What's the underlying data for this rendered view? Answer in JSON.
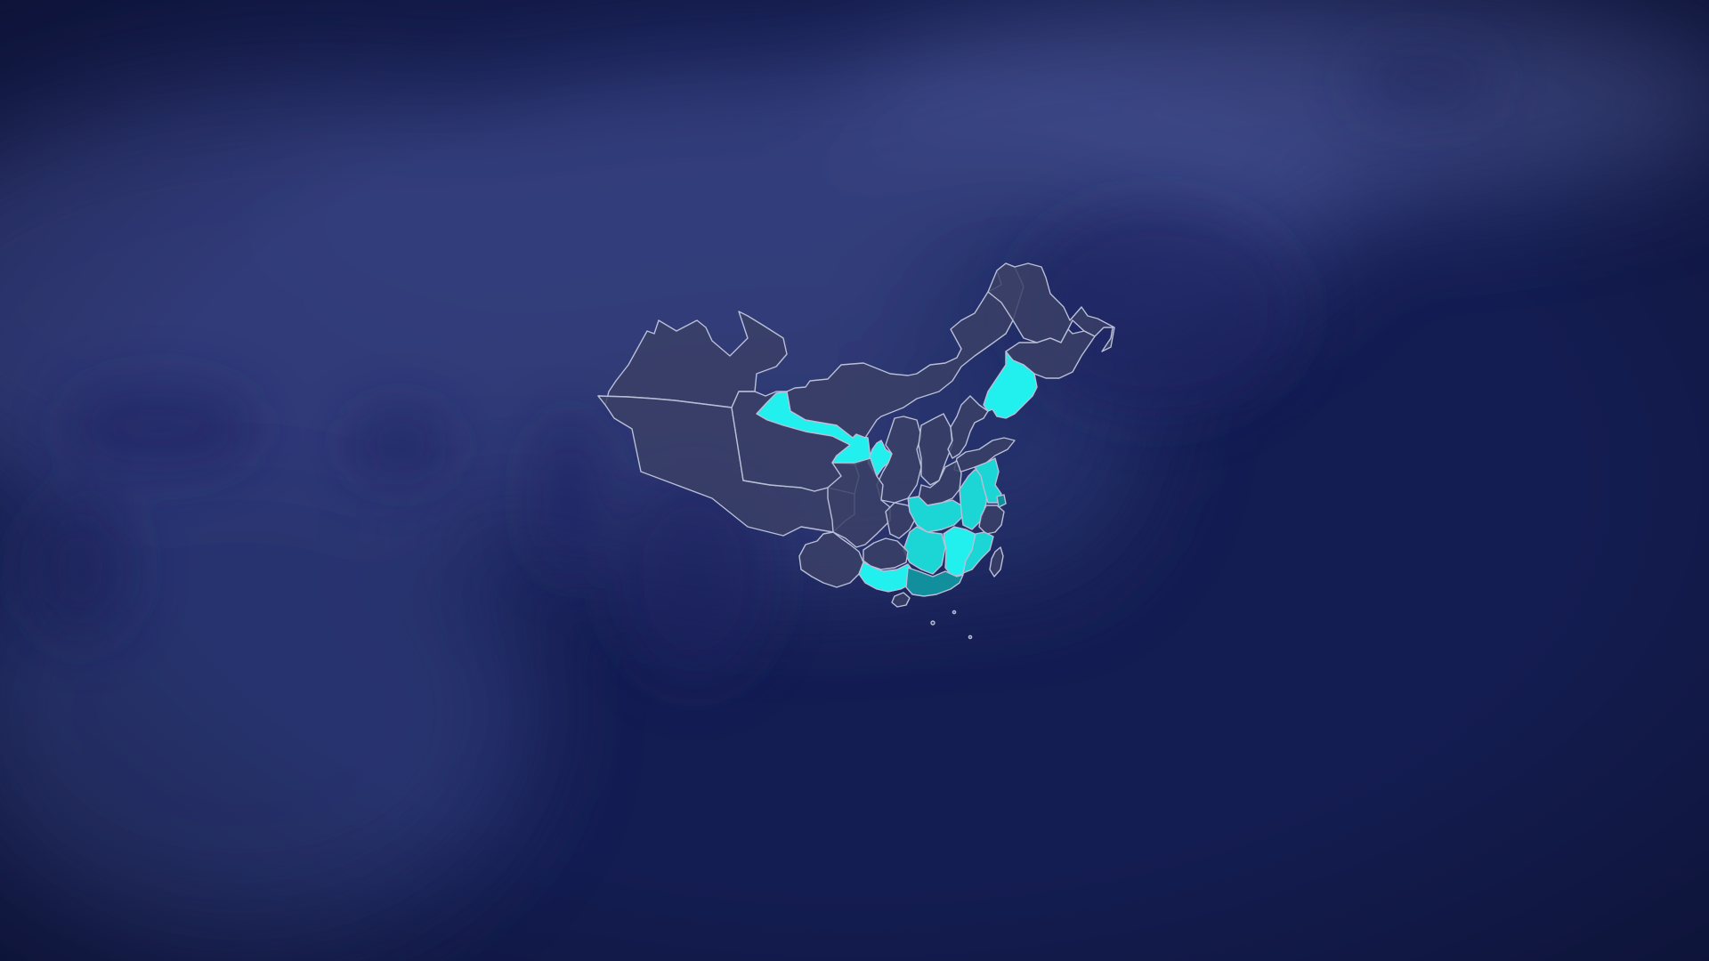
{
  "map": {
    "background_color": "#141d52",
    "terrain_tint": "#4a5aa0",
    "base_fill": "#3a3f66",
    "border_color": "#b9bfd6",
    "highlight_colors": {
      "bright": "#22f0ee",
      "medium": "#1cd6d6",
      "deep": "#128f9c"
    },
    "regions": [
      {
        "id": "xinjiang",
        "level": "base"
      },
      {
        "id": "tibet",
        "level": "base"
      },
      {
        "id": "qinghai",
        "level": "base"
      },
      {
        "id": "gansu",
        "level": "bright"
      },
      {
        "id": "inner-mongolia",
        "level": "base"
      },
      {
        "id": "heilongjiang",
        "level": "base"
      },
      {
        "id": "jilin",
        "level": "base"
      },
      {
        "id": "liaoning",
        "level": "bright"
      },
      {
        "id": "ningxia",
        "level": "bright"
      },
      {
        "id": "shaanxi",
        "level": "base"
      },
      {
        "id": "shanxi",
        "level": "base"
      },
      {
        "id": "hebei",
        "level": "base"
      },
      {
        "id": "shandong",
        "level": "base"
      },
      {
        "id": "henan",
        "level": "base"
      },
      {
        "id": "sichuan",
        "level": "base"
      },
      {
        "id": "chongqing",
        "level": "base"
      },
      {
        "id": "hubei",
        "level": "medium"
      },
      {
        "id": "anhui",
        "level": "medium"
      },
      {
        "id": "jiangsu",
        "level": "medium"
      },
      {
        "id": "shanghai",
        "level": "deep"
      },
      {
        "id": "zhejiang",
        "level": "base"
      },
      {
        "id": "hunan",
        "level": "medium"
      },
      {
        "id": "jiangxi",
        "level": "bright"
      },
      {
        "id": "fujian",
        "level": "medium"
      },
      {
        "id": "yunnan",
        "level": "base"
      },
      {
        "id": "guizhou",
        "level": "base"
      },
      {
        "id": "guangxi",
        "level": "bright"
      },
      {
        "id": "guangdong",
        "level": "deep"
      },
      {
        "id": "hainan",
        "level": "base"
      },
      {
        "id": "taiwan",
        "level": "base"
      }
    ]
  }
}
